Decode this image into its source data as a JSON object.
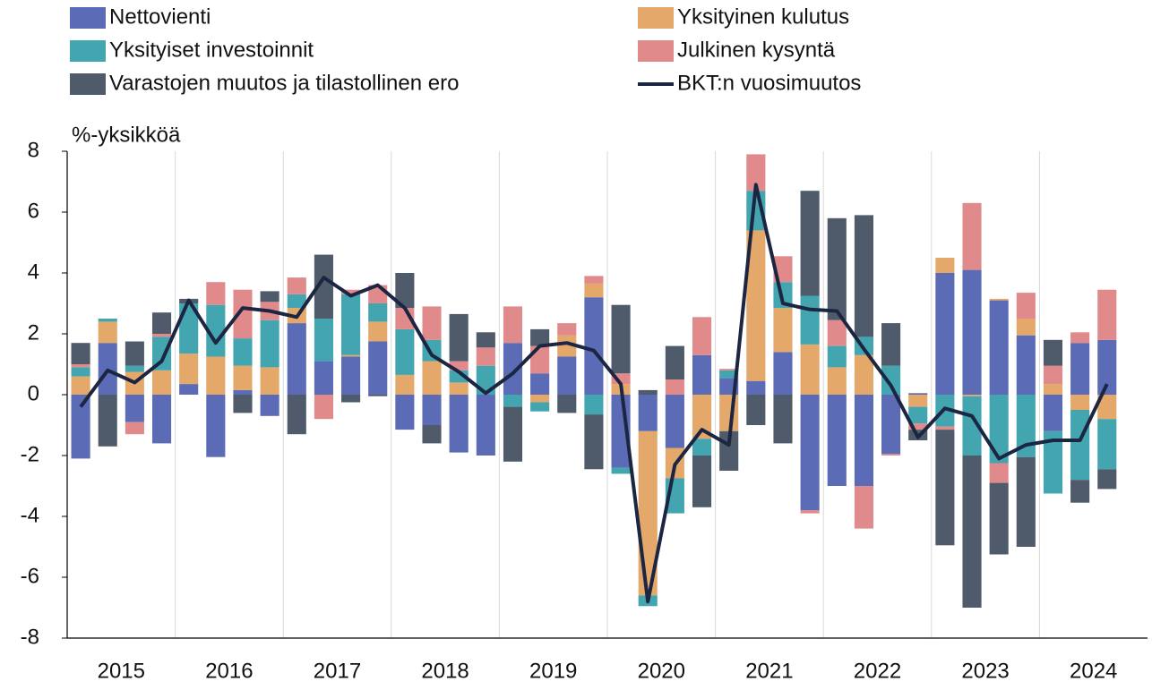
{
  "chart_data": {
    "type": "stacked_bar_line",
    "y_label": "%-yksikköä",
    "categories": [
      "2015",
      null,
      null,
      null,
      "2016",
      null,
      null,
      null,
      "2017",
      null,
      null,
      null,
      "2018",
      null,
      null,
      null,
      "2019",
      null,
      null,
      null,
      "2020",
      null,
      null,
      null,
      "2021",
      null,
      null,
      null,
      "2022",
      null,
      null,
      null,
      "2023",
      null,
      null,
      null,
      "2024",
      null,
      null
    ],
    "series": [
      {
        "name": "Nettovienti",
        "color": "#5b6bb5",
        "type": "bar",
        "values": [
          -2.1,
          1.7,
          -0.9,
          -1.6,
          0.35,
          -2.05,
          0.15,
          -0.7,
          2.35,
          1.1,
          1.25,
          1.75,
          -1.15,
          -1.0,
          -1.9,
          -2.0,
          1.7,
          0.7,
          1.25,
          3.2,
          -2.4,
          -1.2,
          -1.75,
          1.3,
          0.55,
          0.45,
          1.4,
          -3.8,
          -3.0,
          -3.0,
          -1.95,
          0.05,
          4.0,
          4.1,
          3.1,
          1.95,
          -1.2,
          1.7,
          1.8
        ]
      },
      {
        "name": "Yksityinen kulutus",
        "color": "#e3a86a",
        "type": "bar",
        "values": [
          0.6,
          0.7,
          0.75,
          0.8,
          1.0,
          1.25,
          0.8,
          0.9,
          0.5,
          0,
          0.05,
          0.65,
          0.65,
          1.1,
          0.4,
          0,
          0,
          -0.25,
          0.7,
          0.45,
          0.35,
          -5.4,
          -1.0,
          -1.45,
          -1.2,
          4.95,
          1.45,
          1.65,
          0.9,
          1.3,
          0,
          -0.4,
          0.5,
          -0.05,
          0.05,
          0.55,
          0.35,
          -0.5,
          -0.8
        ]
      },
      {
        "name": "Yksityiset investoinnit",
        "color": "#43a5b0",
        "type": "bar",
        "values": [
          0.3,
          0.1,
          0.2,
          1.1,
          1.65,
          1.7,
          0.9,
          1.55,
          0.45,
          1.4,
          2.0,
          0.6,
          1.5,
          0.7,
          0.4,
          0.95,
          -0.4,
          -0.3,
          0,
          -0.65,
          -0.2,
          -0.35,
          -1.15,
          -0.55,
          0.25,
          1.3,
          0.85,
          1.6,
          0.7,
          0.6,
          0.95,
          -0.55,
          -1.05,
          -1.95,
          -2.25,
          -2.05,
          -2.05,
          -2.3,
          -1.65
        ]
      },
      {
        "name": "Julkinen kysyntä",
        "color": "#e08a8c",
        "type": "bar",
        "values": [
          0.1,
          0,
          -0.4,
          0.1,
          0,
          0.75,
          1.6,
          0.6,
          0.55,
          -0.8,
          0.15,
          0.6,
          0.7,
          1.1,
          0.3,
          0.6,
          1.2,
          0.9,
          0.4,
          0.25,
          0.35,
          0,
          0.5,
          1.25,
          0.05,
          1.2,
          0.85,
          -0.1,
          0.85,
          -1.4,
          -0.05,
          -0.2,
          -0.1,
          2.2,
          -0.65,
          0.85,
          0.6,
          0.35,
          1.65
        ]
      },
      {
        "name": "Varastojen muutos ja tilastollinen ero",
        "color": "#4f5b6b",
        "type": "bar",
        "values": [
          0.7,
          -1.7,
          0.8,
          0.7,
          0.15,
          0,
          -0.6,
          0.35,
          -1.3,
          2.1,
          -0.25,
          -0.05,
          1.15,
          -0.6,
          1.55,
          0.5,
          -1.8,
          0.55,
          -0.6,
          -1.8,
          2.25,
          0.15,
          1.1,
          -1.7,
          -1.3,
          -1.0,
          -1.6,
          3.45,
          3.35,
          4.0,
          1.4,
          -0.35,
          -3.8,
          -5.0,
          -2.35,
          -2.95,
          0.85,
          -0.75,
          -0.65
        ]
      },
      {
        "name": "BKT:n vuosimuutos",
        "color": "#1c2541",
        "type": "line",
        "values": [
          -0.4,
          0.8,
          0.4,
          1.1,
          3.1,
          1.7,
          2.85,
          2.75,
          2.55,
          3.85,
          3.25,
          3.6,
          2.85,
          1.3,
          0.75,
          0.05,
          0.7,
          1.6,
          1.7,
          1.45,
          0.35,
          -6.8,
          -2.3,
          -1.15,
          -1.65,
          6.9,
          3.0,
          2.8,
          2.75,
          1.5,
          0.3,
          -1.4,
          -0.45,
          -0.7,
          -2.1,
          -1.65,
          -1.5,
          -1.5,
          0.35
        ]
      }
    ],
    "ylim": [
      -8,
      8
    ],
    "yticks": [
      -8,
      -6,
      -4,
      -2,
      0,
      2,
      4,
      6,
      8
    ],
    "grid": false
  }
}
